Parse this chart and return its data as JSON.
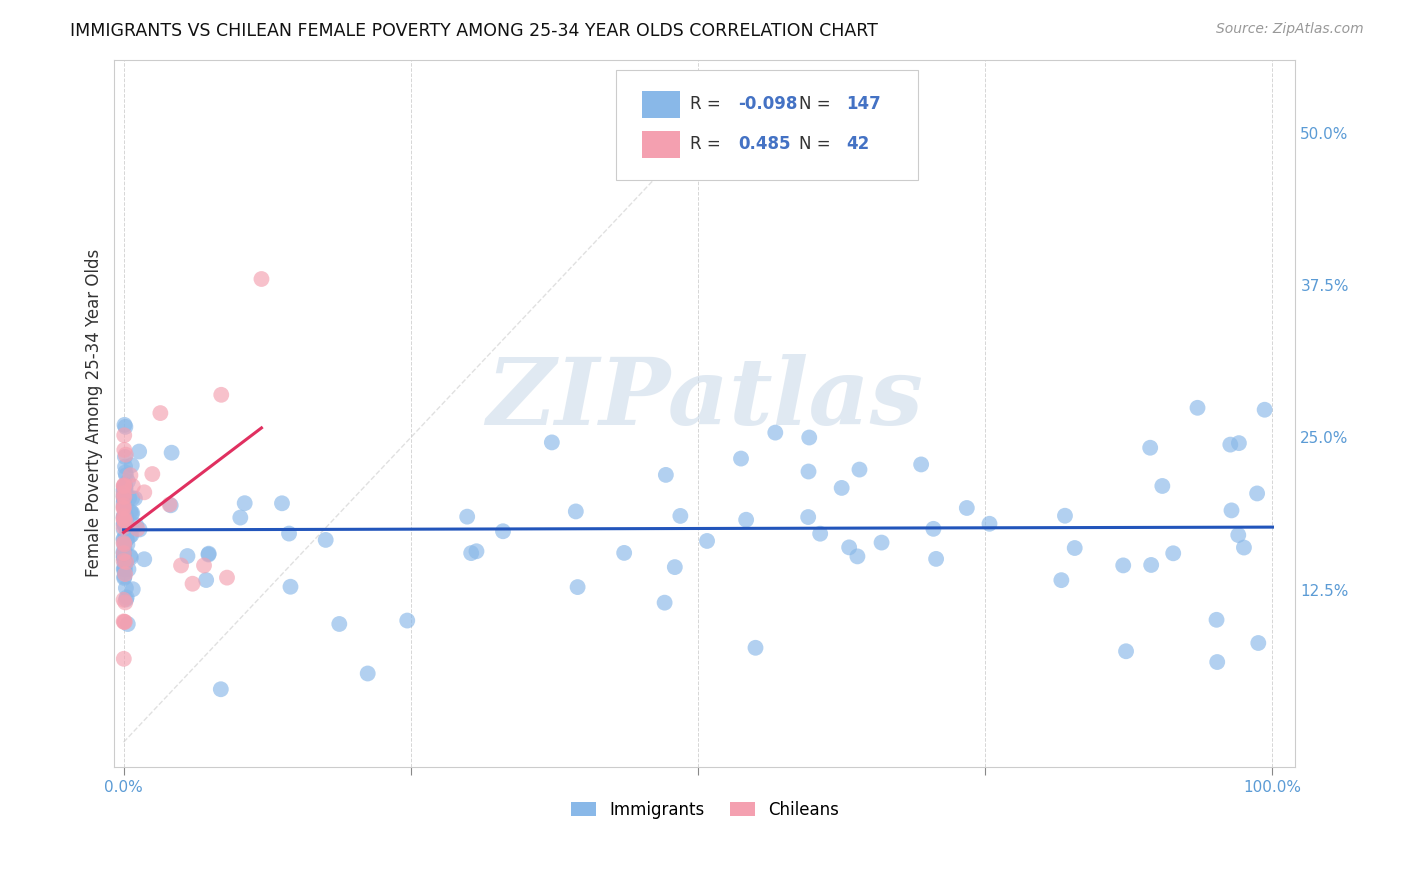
{
  "title": "IMMIGRANTS VS CHILEAN FEMALE POVERTY AMONG 25-34 YEAR OLDS CORRELATION CHART",
  "source": "Source: ZipAtlas.com",
  "ylabel": "Female Poverty Among 25-34 Year Olds",
  "watermark": "ZIPatlas",
  "xlim": [
    -0.008,
    1.02
  ],
  "ylim": [
    -0.02,
    0.56
  ],
  "ytick_positions": [
    0.125,
    0.25,
    0.375,
    0.5
  ],
  "yticklabels": [
    "12.5%",
    "25.0%",
    "37.5%",
    "50.0%"
  ],
  "grid_color": "#cccccc",
  "background_color": "#ffffff",
  "immigrants_color": "#89b8e8",
  "chileans_color": "#f4a0b0",
  "trendline_immigrants_color": "#2255bb",
  "trendline_chileans_color": "#e03060",
  "trendline_diagonal_color": "#cccccc",
  "legend_R_immigrants": "-0.098",
  "legend_N_immigrants": "147",
  "legend_R_chileans": "0.485",
  "legend_N_chileans": "42",
  "legend_value_color": "#4472c4",
  "legend_label_color": "#333333",
  "watermark_color": "#c8d8e8"
}
